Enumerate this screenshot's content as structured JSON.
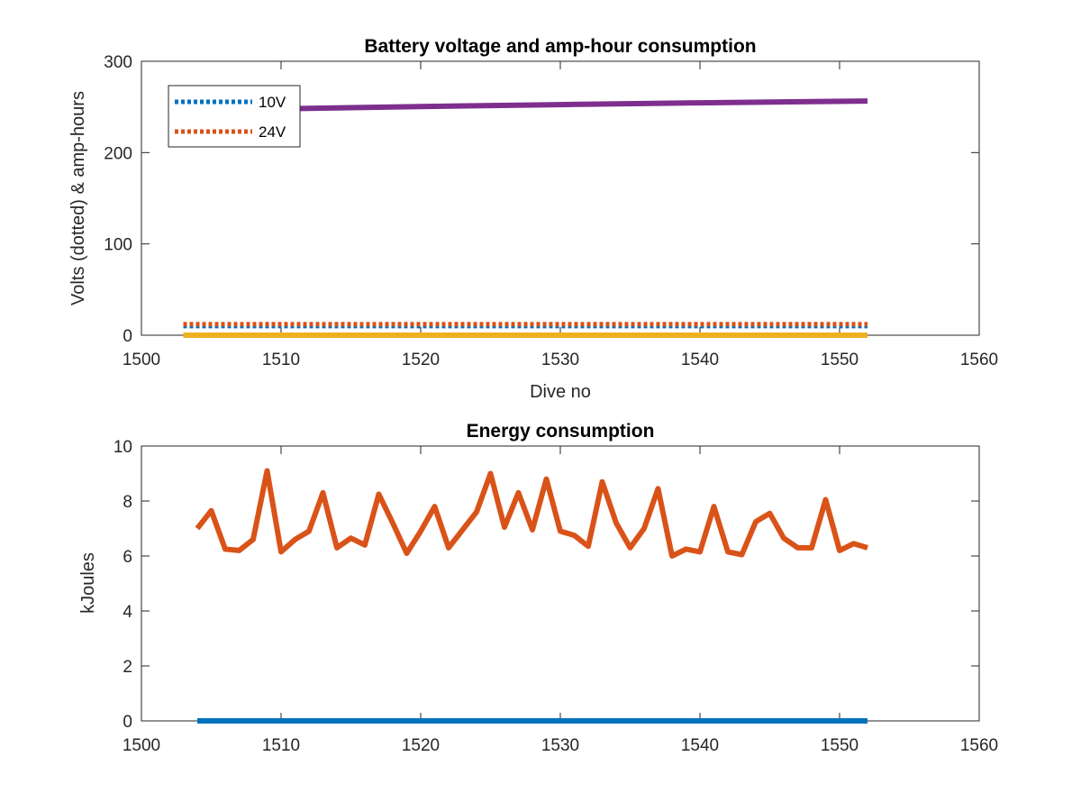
{
  "chart_data": [
    {
      "type": "line",
      "title": "Battery voltage and amp-hour consumption",
      "xlabel": "Dive no",
      "ylabel": "Volts (dotted) & amp-hours",
      "xlim": [
        1500,
        1560
      ],
      "ylim": [
        0,
        300
      ],
      "xticks": [
        "1500",
        "1510",
        "1520",
        "1530",
        "1540",
        "1550",
        "1560"
      ],
      "yticks": [
        "0",
        "100",
        "200",
        "300"
      ],
      "grid": false,
      "legend_position": "top-left",
      "legend": [
        "10V",
        "24V"
      ],
      "series": [
        {
          "name": "10V",
          "color": "#0072BD",
          "style": "dotted",
          "x": [
            1503,
            1552
          ],
          "y": [
            10,
            10
          ]
        },
        {
          "name": "24V",
          "color": "#D95319",
          "style": "dotted",
          "x": [
            1503,
            1552
          ],
          "y": [
            12,
            12
          ]
        },
        {
          "color": "#EDB120",
          "style": "solid",
          "x": [
            1503,
            1552
          ],
          "y": [
            0,
            0
          ]
        },
        {
          "color": "#7E2F8E",
          "style": "solid",
          "x": [
            1510,
            1520,
            1530,
            1540,
            1552
          ],
          "y": [
            248,
            250.5,
            252.5,
            254.5,
            256.5
          ]
        }
      ]
    },
    {
      "type": "line",
      "title": "Energy consumption",
      "xlabel": "",
      "ylabel": "kJoules",
      "xlim": [
        1500,
        1560
      ],
      "ylim": [
        0,
        10
      ],
      "xticks": [
        "1500",
        "1510",
        "1520",
        "1530",
        "1540",
        "1550",
        "1560"
      ],
      "yticks": [
        "0",
        "2",
        "4",
        "6",
        "8",
        "10"
      ],
      "grid": false,
      "series": [
        {
          "color": "#0072BD",
          "style": "solid",
          "x": [
            1504,
            1552
          ],
          "y": [
            0,
            0
          ]
        },
        {
          "color": "#D95319",
          "style": "solid",
          "x": [
            1504,
            1505,
            1506,
            1507,
            1508,
            1509,
            1510,
            1511,
            1512,
            1513,
            1514,
            1515,
            1516,
            1517,
            1518,
            1519,
            1520,
            1521,
            1522,
            1523,
            1524,
            1525,
            1526,
            1527,
            1528,
            1529,
            1530,
            1531,
            1532,
            1533,
            1534,
            1535,
            1536,
            1537,
            1538,
            1539,
            1540,
            1541,
            1542,
            1543,
            1544,
            1545,
            1546,
            1547,
            1548,
            1549,
            1550,
            1551,
            1552
          ],
          "y": [
            7.0,
            7.65,
            6.25,
            6.2,
            6.6,
            9.1,
            6.15,
            6.6,
            6.9,
            8.3,
            6.3,
            6.65,
            6.4,
            8.25,
            7.2,
            6.1,
            6.9,
            7.8,
            6.3,
            6.95,
            7.6,
            9.0,
            7.05,
            8.3,
            6.95,
            8.8,
            6.9,
            6.75,
            6.35,
            8.7,
            7.2,
            6.3,
            7.0,
            8.45,
            6.0,
            6.25,
            6.15,
            7.8,
            6.15,
            6.05,
            7.25,
            7.55,
            6.65,
            6.3,
            6.3,
            8.05,
            6.2,
            6.45,
            6.3
          ]
        }
      ]
    }
  ]
}
